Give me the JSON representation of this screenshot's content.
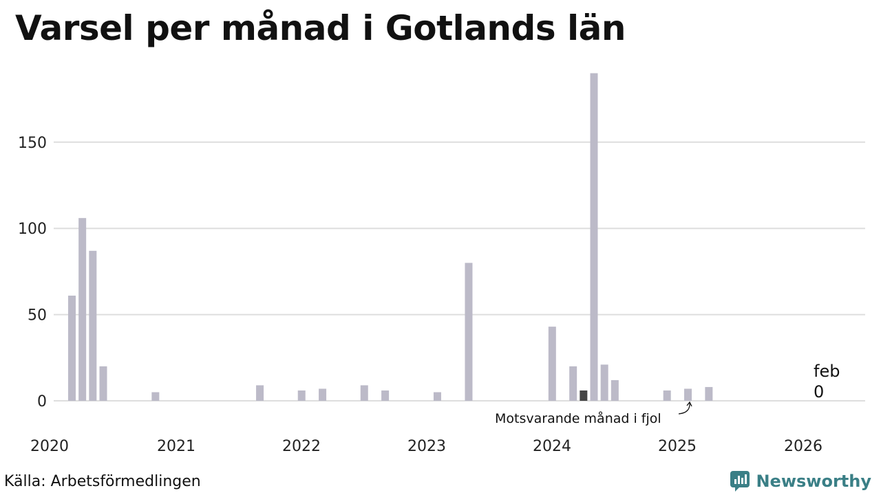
{
  "title": "Varsel per månad i Gotlands län",
  "source": "Källa: Arbetsförmedlingen",
  "brand": {
    "name": "Newsworthy",
    "icon": "newsworthy-logo-icon",
    "color": "#3a7f86"
  },
  "chart_data": {
    "type": "bar",
    "title": "Varsel per månad i Gotlands län",
    "xlabel": "",
    "ylabel": "",
    "ylim": [
      0,
      190
    ],
    "yticks": [
      0,
      50,
      100,
      150
    ],
    "xticks": [
      "2020",
      "2021",
      "2022",
      "2023",
      "2024",
      "2025",
      "2026"
    ],
    "grid": true,
    "colors": {
      "bar": "#bcbac8",
      "highlight": "#444444",
      "grid": "#dedede"
    },
    "x": [
      "2020-01",
      "2020-02",
      "2020-03",
      "2020-04",
      "2020-05",
      "2020-06",
      "2020-07",
      "2020-08",
      "2020-09",
      "2020-10",
      "2020-11",
      "2020-12",
      "2021-01",
      "2021-02",
      "2021-03",
      "2021-04",
      "2021-05",
      "2021-06",
      "2021-07",
      "2021-08",
      "2021-09",
      "2021-10",
      "2021-11",
      "2021-12",
      "2022-01",
      "2022-02",
      "2022-03",
      "2022-04",
      "2022-05",
      "2022-06",
      "2022-07",
      "2022-08",
      "2022-09",
      "2022-10",
      "2022-11",
      "2022-12",
      "2023-01",
      "2023-02",
      "2023-03",
      "2023-04",
      "2023-05",
      "2023-06",
      "2023-07",
      "2023-08",
      "2023-09",
      "2023-10",
      "2023-11",
      "2023-12",
      "2024-01",
      "2024-02",
      "2024-03",
      "2024-04",
      "2024-05",
      "2024-06",
      "2024-07",
      "2024-08",
      "2024-09",
      "2024-10",
      "2024-11",
      "2024-12",
      "2025-01",
      "2025-02",
      "2025-03",
      "2025-04",
      "2025-05",
      "2025-06",
      "2025-07",
      "2025-08",
      "2025-09",
      "2025-10",
      "2025-11",
      "2025-12",
      "2026-01",
      "2026-02"
    ],
    "values": [
      61,
      106,
      87,
      20,
      0,
      0,
      0,
      0,
      5,
      0,
      0,
      0,
      0,
      0,
      0,
      0,
      0,
      0,
      9,
      0,
      0,
      0,
      6,
      0,
      7,
      0,
      0,
      0,
      9,
      0,
      6,
      0,
      0,
      0,
      0,
      5,
      0,
      0,
      80,
      0,
      0,
      0,
      0,
      0,
      0,
      0,
      43,
      0,
      20,
      6,
      190,
      21,
      12,
      0,
      0,
      0,
      0,
      6,
      0,
      7,
      0,
      8,
      0,
      0,
      0,
      0,
      0,
      0,
      0,
      0,
      0,
      0,
      0,
      0
    ],
    "highlight": [
      "2023-02",
      "2024-02"
    ],
    "last_label": {
      "month": "feb",
      "value": "0"
    },
    "annotation": "Motsvarande månad i fjol"
  }
}
